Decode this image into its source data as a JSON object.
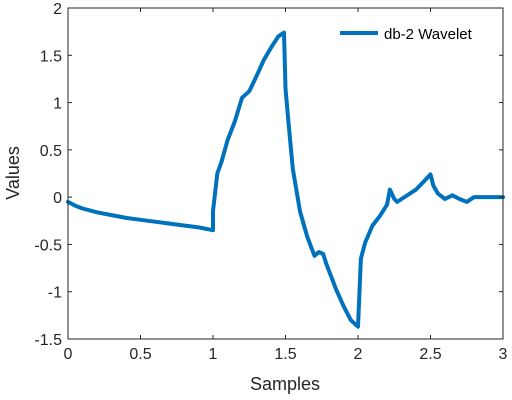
{
  "chart_data": {
    "type": "line",
    "xlabel": "Samples",
    "ylabel": "Values",
    "xlim": [
      0,
      3
    ],
    "ylim": [
      -1.5,
      2
    ],
    "xticks": [
      "0",
      "0.5",
      "1",
      "1.5",
      "2",
      "2.5",
      "3"
    ],
    "yticks": [
      "2",
      "1.5",
      "1",
      "0.5",
      "0",
      "-0.5",
      "-1",
      "-1.5"
    ],
    "grid": false,
    "legend_position": "top-right",
    "series": [
      {
        "name": "db-2 Wavelet",
        "color": "#0072BD",
        "x": [
          0,
          0.05,
          0.1,
          0.2,
          0.3,
          0.4,
          0.5,
          0.6,
          0.7,
          0.8,
          0.9,
          1.0,
          1.0,
          1.03,
          1.06,
          1.1,
          1.15,
          1.2,
          1.25,
          1.3,
          1.35,
          1.4,
          1.45,
          1.49,
          1.5,
          1.52,
          1.55,
          1.6,
          1.65,
          1.7,
          1.73,
          1.76,
          1.78,
          1.8,
          1.85,
          1.9,
          1.95,
          2.0,
          2.02,
          2.05,
          2.1,
          2.15,
          2.2,
          2.22,
          2.25,
          2.27,
          2.3,
          2.35,
          2.4,
          2.45,
          2.5,
          2.52,
          2.55,
          2.6,
          2.65,
          2.7,
          2.75,
          2.8,
          2.9,
          3.0
        ],
        "values": [
          -0.05,
          -0.09,
          -0.12,
          -0.16,
          -0.19,
          -0.22,
          -0.24,
          -0.26,
          -0.28,
          -0.3,
          -0.32,
          -0.35,
          -0.15,
          0.25,
          0.38,
          0.6,
          0.8,
          1.05,
          1.12,
          1.28,
          1.45,
          1.58,
          1.7,
          1.74,
          1.15,
          0.8,
          0.3,
          -0.15,
          -0.42,
          -0.62,
          -0.58,
          -0.6,
          -0.7,
          -0.78,
          -0.98,
          -1.15,
          -1.3,
          -1.37,
          -0.65,
          -0.48,
          -0.3,
          -0.2,
          -0.08,
          0.08,
          -0.02,
          -0.05,
          -0.02,
          0.03,
          0.08,
          0.16,
          0.24,
          0.12,
          0.04,
          -0.02,
          0.02,
          -0.02,
          -0.05,
          0.0,
          0.0,
          0.0
        ]
      }
    ]
  }
}
